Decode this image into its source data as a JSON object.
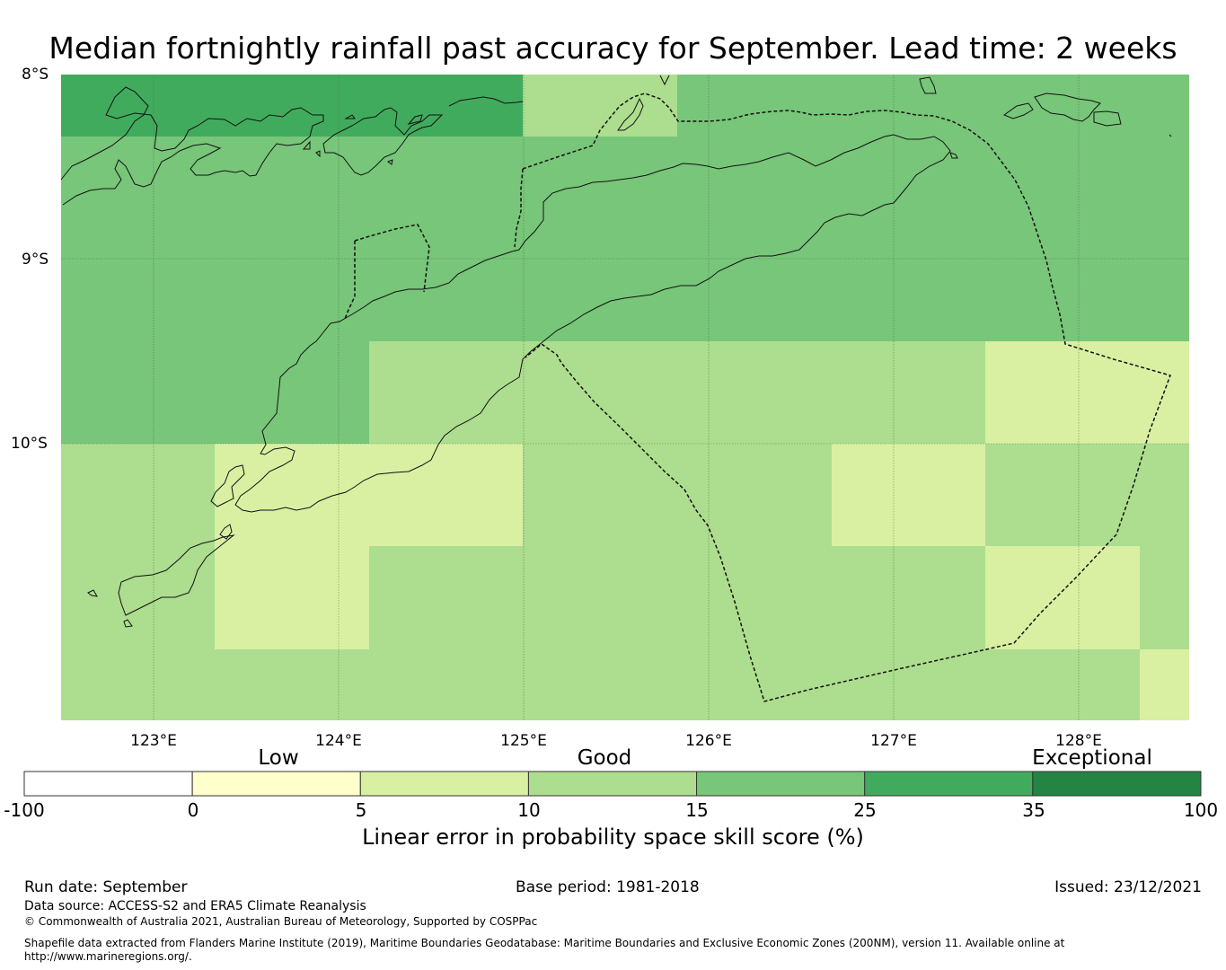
{
  "title": "Median fortnightly rainfall past accuracy for September. Lead time: 2 weeks",
  "map": {
    "lat_labels": [
      "8°S",
      "9°S",
      "10°S"
    ],
    "lon_labels": [
      "123°E",
      "124°E",
      "125°E",
      "126°E",
      "127°E",
      "128°E"
    ],
    "lon_range": [
      122.5,
      128.6
    ],
    "lat_range": [
      -8.0,
      -11.5
    ]
  },
  "legend": {
    "categories": [
      "Low",
      "Good",
      "Exceptional"
    ],
    "ticks": [
      "-100",
      "0",
      "5",
      "10",
      "15",
      "25",
      "35",
      "100"
    ],
    "colors": [
      "#ffffff",
      "#ffffcc",
      "#d9f0a3",
      "#addd8e",
      "#78c679",
      "#41ab5d",
      "#238443"
    ],
    "label": "Linear error in probability space skill score (%)"
  },
  "footer": {
    "run_date": "Run date: September",
    "base_period": "Base period: 1981-2018",
    "issued": "Issued: 23/12/2021",
    "data_source": "Data source: ACCESS-S2 and ERA5 Climate Reanalysis",
    "copyright": "© Commonwealth of Australia 2021, Australian Bureau of Meteorology, Supported by COSPPac",
    "shapefile_line1": "Shapefile data extracted from Flanders Marine Institute (2019), Maritime Boundaries Geodatabase: Maritime Boundaries and Exclusive Economic Zones (200NM), version 11. Available online at",
    "shapefile_line2": "http://www.marineregions.org/."
  }
}
